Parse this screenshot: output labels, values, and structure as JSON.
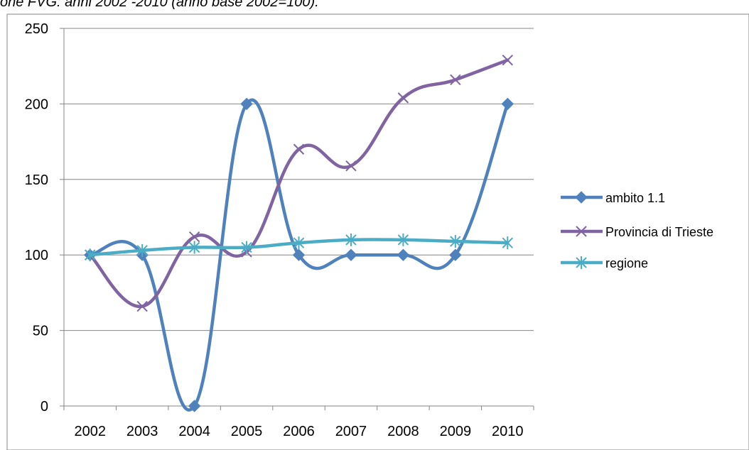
{
  "header_text": "one FVG: anni 2002 -2010 (anno base 2002=100).",
  "chart_data": {
    "type": "line",
    "categories": [
      "2002",
      "2003",
      "2004",
      "2005",
      "2006",
      "2007",
      "2008",
      "2009",
      "2010"
    ],
    "ylim": [
      0,
      250
    ],
    "yticks": [
      0,
      50,
      100,
      150,
      200,
      250
    ],
    "grid": "horizontal",
    "legend_position": "right",
    "series": [
      {
        "name": "ambito 1.1",
        "color": "#4f81bd",
        "marker": "diamond",
        "values": [
          100,
          100,
          0,
          200,
          100,
          100,
          100,
          100,
          200
        ]
      },
      {
        "name": "Provincia di Trieste",
        "color": "#8064a2",
        "marker": "x",
        "values": [
          100,
          66,
          112,
          102,
          170,
          159,
          204,
          216,
          229
        ]
      },
      {
        "name": "regione",
        "color": "#4bacc6",
        "marker": "star",
        "values": [
          100,
          103,
          105,
          105,
          108,
          110,
          110,
          109,
          108
        ]
      }
    ]
  }
}
